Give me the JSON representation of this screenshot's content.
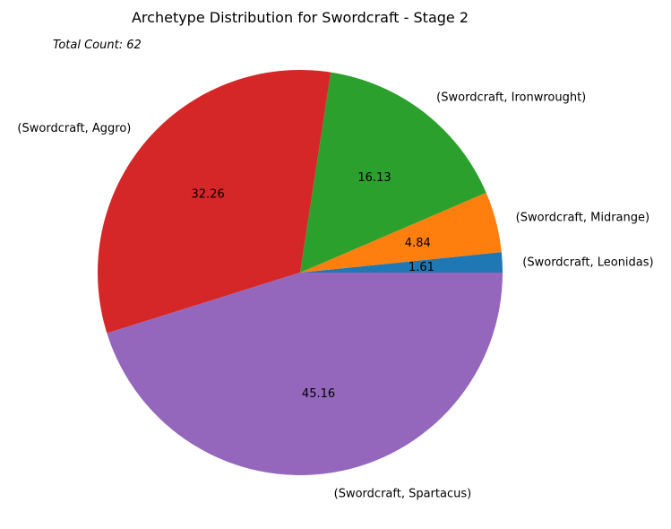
{
  "chart_data": {
    "type": "pie",
    "title": "Archetype Distribution for Swordcraft - Stage 2",
    "annotation": "Total Count: 62",
    "start_angle_deg": 0,
    "direction": "counterclockwise",
    "slices": [
      {
        "label": "(Swordcraft, Leonidas)",
        "value": 1.61,
        "display": "1.61",
        "color": "#1f77b4"
      },
      {
        "label": "(Swordcraft, Midrange)",
        "value": 4.84,
        "display": "4.84",
        "color": "#ff7f0e"
      },
      {
        "label": "(Swordcraft, Ironwrought)",
        "value": 16.13,
        "display": "16.13",
        "color": "#2ca02c"
      },
      {
        "label": "(Swordcraft, Aggro)",
        "value": 32.26,
        "display": "32.26",
        "color": "#d62728"
      },
      {
        "label": "(Swordcraft, Spartacus)",
        "value": 45.16,
        "display": "45.16",
        "color": "#9467bd"
      }
    ]
  }
}
